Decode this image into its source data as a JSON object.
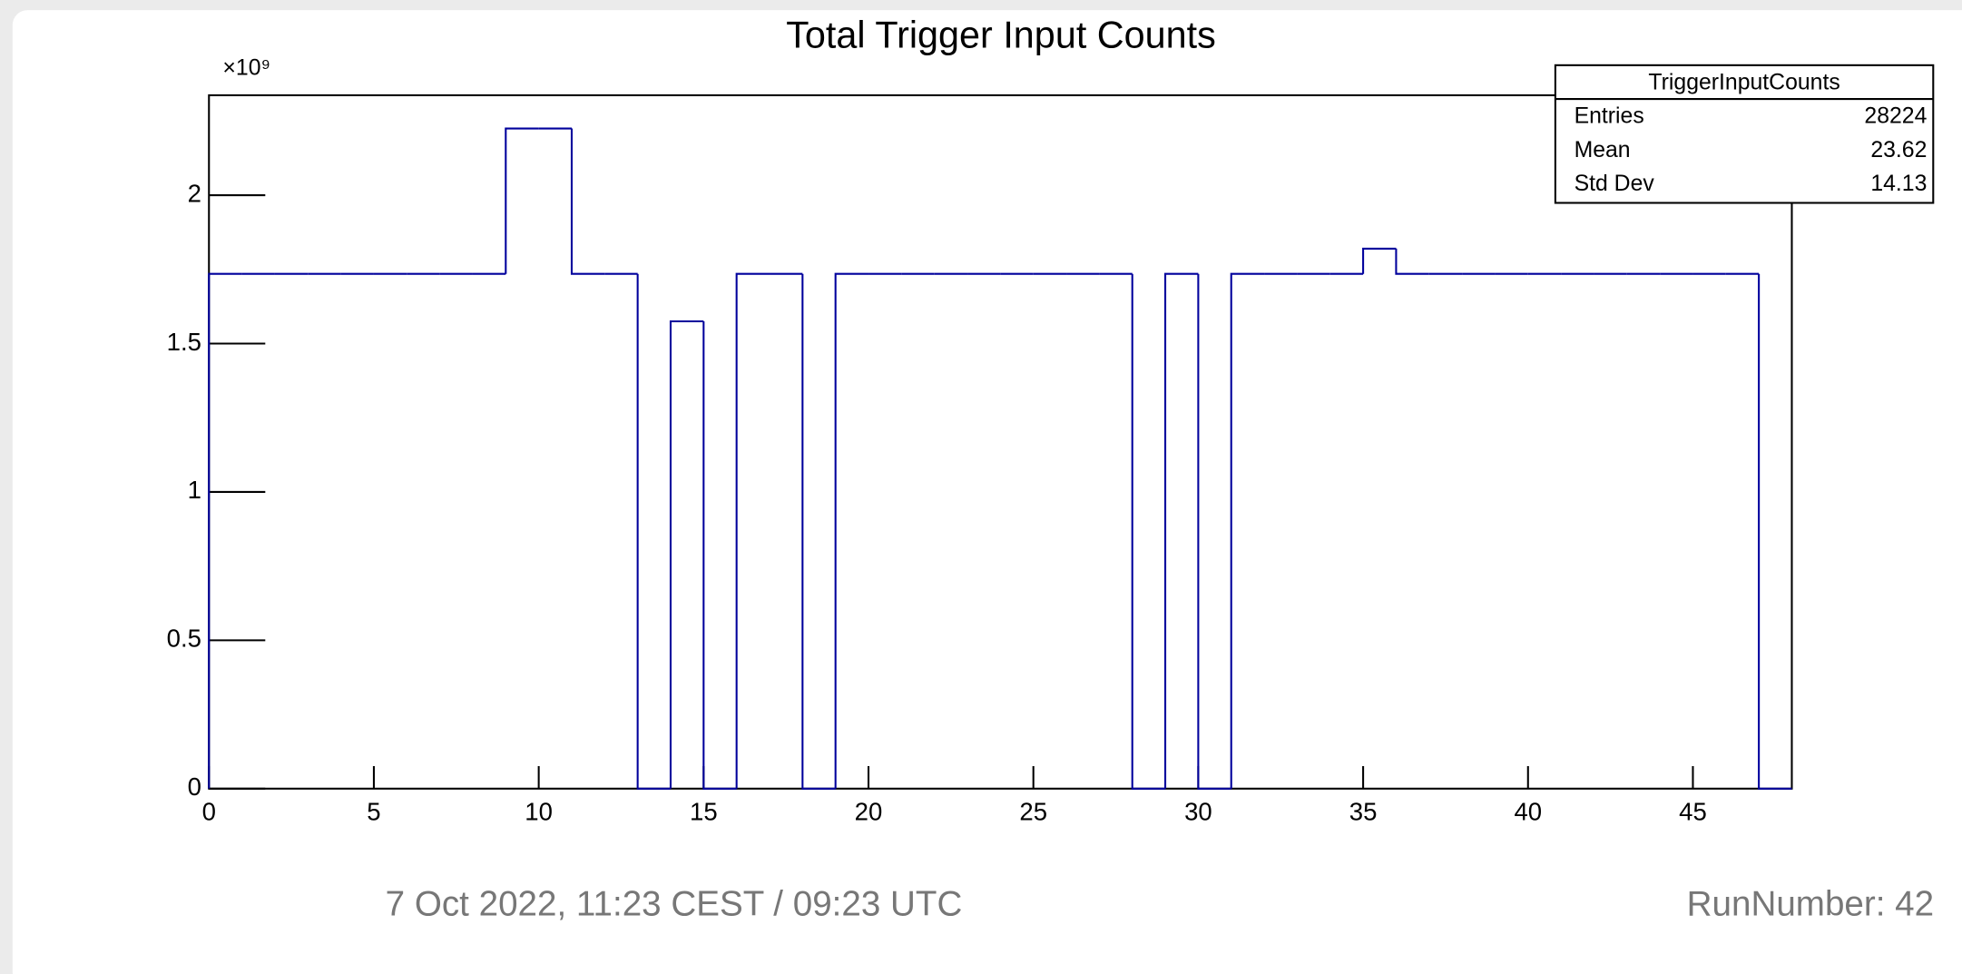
{
  "chart_data": {
    "type": "histogram",
    "title": "Total Trigger Input Counts",
    "y_multiplier": "×10⁹",
    "bins": [
      0,
      1,
      2,
      3,
      4,
      5,
      6,
      7,
      8,
      9,
      10,
      11,
      12,
      13,
      14,
      15,
      16,
      17,
      18,
      19,
      20,
      21,
      22,
      23,
      24,
      25,
      26,
      27,
      28,
      29,
      30,
      31,
      32,
      33,
      34,
      35,
      36,
      37,
      38,
      39,
      40,
      41,
      42,
      43,
      44,
      45,
      46,
      47,
      48
    ],
    "values": [
      1.735,
      1.735,
      1.735,
      1.735,
      1.735,
      1.735,
      1.735,
      1.735,
      1.735,
      2.225,
      2.225,
      1.735,
      1.735,
      0,
      1.575,
      0,
      1.735,
      1.735,
      0,
      1.735,
      1.735,
      1.735,
      1.735,
      1.735,
      1.735,
      1.735,
      1.735,
      1.735,
      0,
      1.735,
      0,
      1.735,
      1.735,
      1.735,
      1.735,
      1.82,
      1.735,
      1.735,
      1.735,
      1.735,
      1.735,
      1.735,
      1.735,
      1.735,
      1.735,
      1.735,
      1.735,
      0
    ],
    "color": "#00009c",
    "xlim": [
      0,
      48
    ],
    "xticks": [
      0,
      5,
      10,
      15,
      20,
      25,
      30,
      35,
      40,
      45
    ],
    "ylim": [
      0,
      2.337
    ],
    "yticks": [
      0,
      0.5,
      1,
      1.5,
      2
    ],
    "stats": {
      "name": "TriggerInputCounts",
      "rows": [
        [
          "Entries",
          "28224"
        ],
        [
          "Mean",
          "23.62"
        ],
        [
          "Std Dev",
          "14.13"
        ]
      ]
    },
    "footer_date": "7 Oct 2022, 11:23 CEST / 09:23 UTC",
    "footer_run": "RunNumber: 42"
  }
}
